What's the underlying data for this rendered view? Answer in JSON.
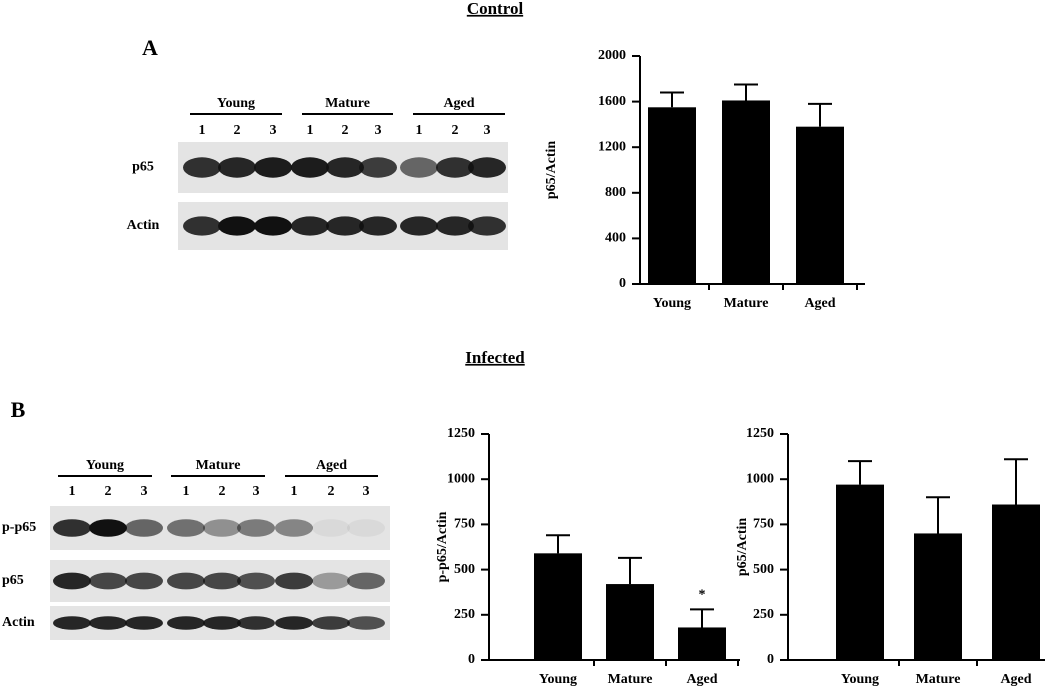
{
  "sections": [
    {
      "title": "Control",
      "panel": "A",
      "blot": {
        "groups": [
          "Young",
          "Mature",
          "Aged"
        ],
        "lanes": [
          "1",
          "2",
          "3"
        ],
        "rows": [
          "p65",
          "Actin"
        ]
      }
    },
    {
      "title": "Infected",
      "panel": "B",
      "blot": {
        "groups": [
          "Young",
          "Mature",
          "Aged"
        ],
        "lanes": [
          "1",
          "2",
          "3"
        ],
        "rows": [
          "p-p65",
          "p65",
          "Actin"
        ]
      }
    }
  ],
  "chart_data": [
    {
      "type": "bar",
      "y_label": "p65/Actin",
      "categories": [
        "Young",
        "Mature",
        "Aged"
      ],
      "values": [
        1550,
        1610,
        1380
      ],
      "errors": [
        130,
        140,
        200
      ],
      "color": "#000000",
      "ylim": [
        0,
        2000
      ],
      "yticks": [
        0,
        400,
        800,
        1200,
        1600,
        2000
      ]
    },
    {
      "type": "bar",
      "y_label": "p-p65/Actin",
      "categories": [
        "Young",
        "Mature",
        "Aged"
      ],
      "values": [
        590,
        420,
        180
      ],
      "errors": [
        100,
        145,
        100
      ],
      "color": "#000000",
      "ylim": [
        0,
        1250
      ],
      "yticks": [
        0,
        250,
        500,
        750,
        1000,
        1250
      ],
      "annotations": [
        {
          "text": "*",
          "x": "Aged"
        }
      ]
    },
    {
      "type": "bar",
      "y_label": "p65/Actin",
      "categories": [
        "Young",
        "Mature",
        "Aged"
      ],
      "values": [
        970,
        700,
        860
      ],
      "errors": [
        130,
        200,
        250
      ],
      "color": "#000000",
      "ylim": [
        0,
        1250
      ],
      "yticks": [
        0,
        250,
        500,
        750,
        1000,
        1250
      ]
    }
  ]
}
